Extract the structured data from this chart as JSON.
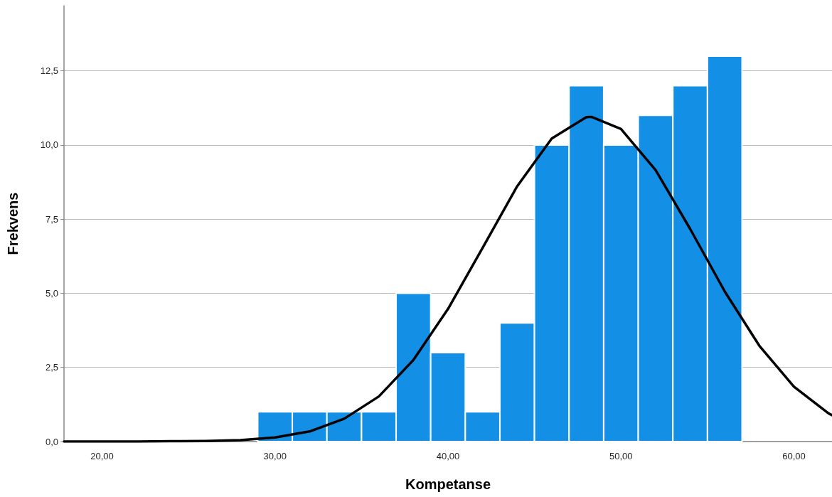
{
  "chart_data": {
    "type": "histogram",
    "xlabel": "Kompetanse",
    "ylabel": "Frekvens",
    "bins": [
      29,
      31,
      33,
      35,
      37,
      39,
      41,
      43,
      45,
      47,
      49,
      51,
      53,
      55,
      57
    ],
    "values": [
      1,
      1,
      1,
      1,
      5,
      3,
      1,
      4,
      10,
      12,
      10,
      11,
      12,
      13
    ],
    "color": "#1390e6",
    "series": [
      {
        "type": "line",
        "color": "#000000",
        "x": [
          17.8,
          20,
          22,
          24,
          26,
          28,
          30,
          32,
          34,
          36,
          38,
          40,
          42,
          44,
          46,
          48,
          48.3,
          50,
          52,
          54,
          56,
          58,
          60,
          62,
          62.2
        ],
        "values": [
          0,
          0,
          0,
          0.01,
          0.02,
          0.05,
          0.14,
          0.34,
          0.77,
          1.52,
          2.75,
          4.47,
          6.53,
          8.61,
          10.22,
          10.94,
          10.95,
          10.54,
          9.16,
          7.17,
          5.06,
          3.23,
          1.85,
          0.95,
          0.89
        ]
      }
    ],
    "xlim": [
      17.8,
      62.2
    ],
    "xticks": [
      {
        "value": 20,
        "label": "20,00"
      },
      {
        "value": 30,
        "label": "30,00"
      },
      {
        "value": 40,
        "label": "40,00"
      },
      {
        "value": 50,
        "label": "50,00"
      },
      {
        "value": 60,
        "label": "60,00"
      }
    ],
    "ylim": [
      0,
      14.7
    ],
    "yticks": [
      {
        "value": 0,
        "label": "0,0"
      },
      {
        "value": 2.5,
        "label": "2,5"
      },
      {
        "value": 5,
        "label": "5,0"
      },
      {
        "value": 7.5,
        "label": "7,5"
      },
      {
        "value": 10,
        "label": "10,0"
      },
      {
        "value": 12.5,
        "label": "12,5"
      }
    ],
    "grid": "y",
    "marker": "none",
    "line_style": "solid"
  }
}
